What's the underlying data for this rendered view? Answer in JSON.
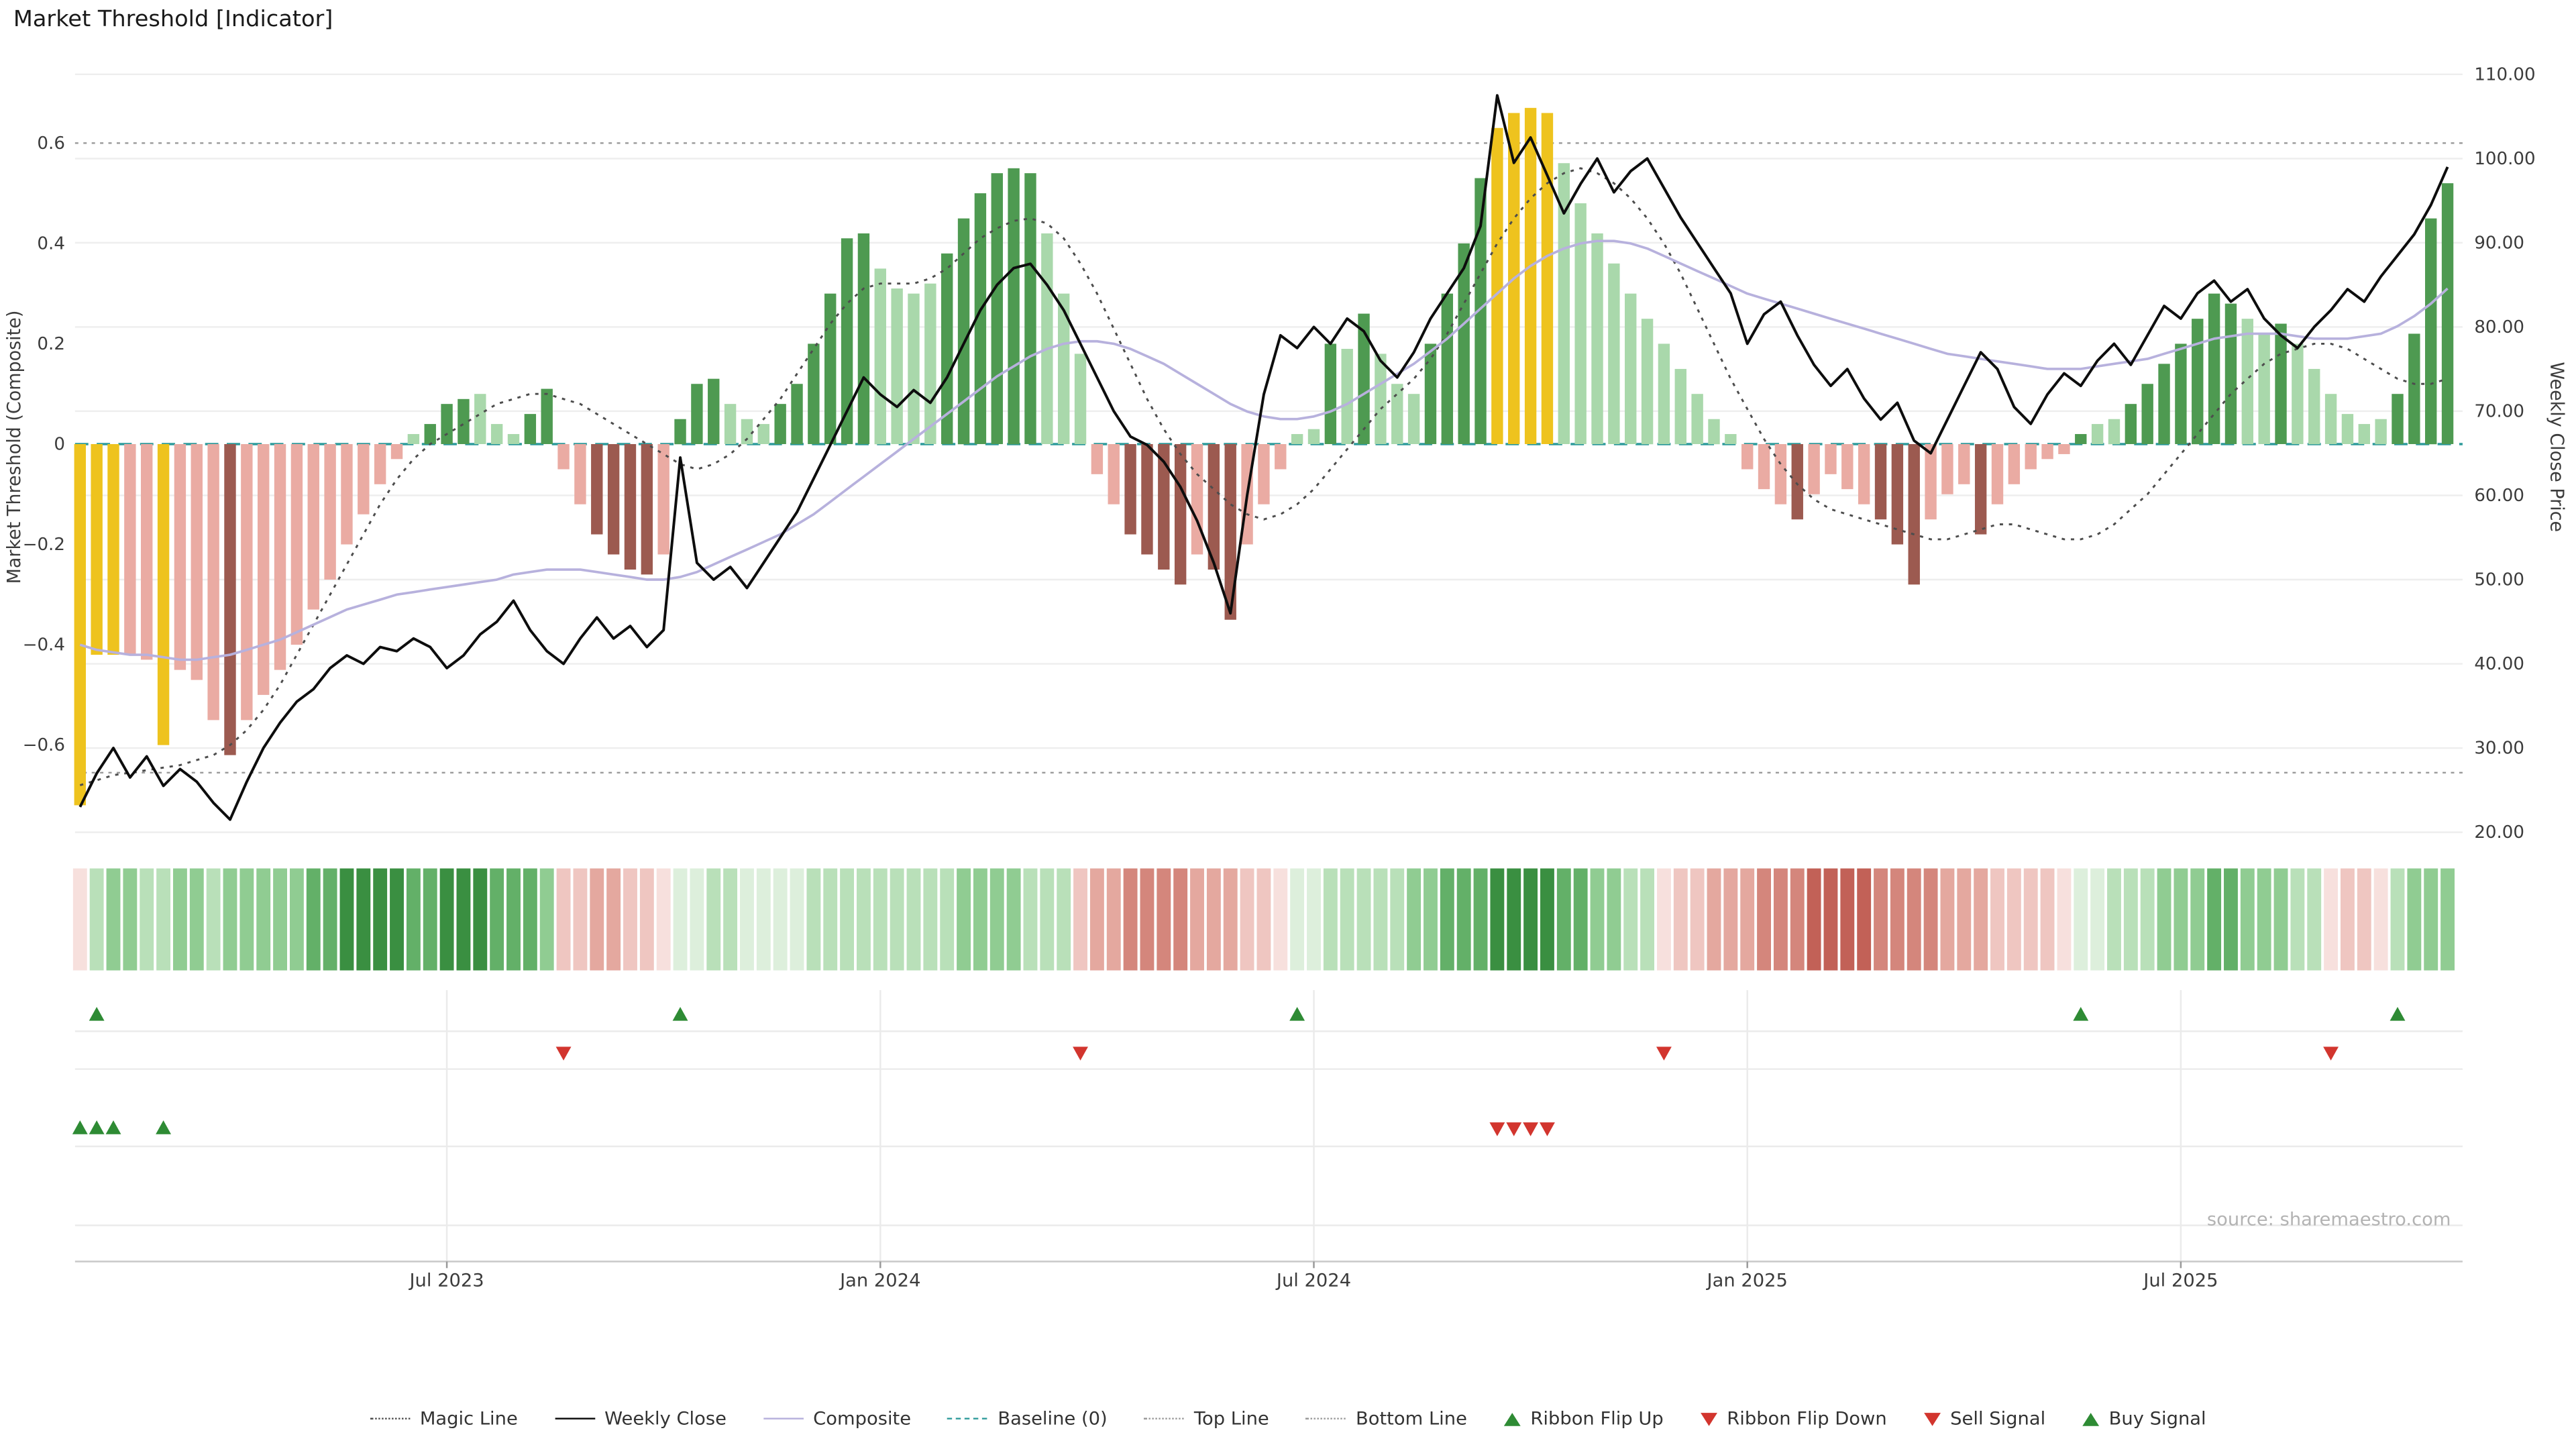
{
  "title": "Market Threshold [Indicator]",
  "source": "source: sharemaestro.com",
  "legend": [
    {
      "label": "Magic Line"
    },
    {
      "label": "Weekly Close"
    },
    {
      "label": "Composite"
    },
    {
      "label": "Baseline (0)"
    },
    {
      "label": "Top Line"
    },
    {
      "label": "Bottom Line"
    },
    {
      "label": "Ribbon Flip Up"
    },
    {
      "label": "Ribbon Flip Down"
    },
    {
      "label": "Sell Signal"
    },
    {
      "label": "Buy Signal"
    }
  ],
  "colors": {
    "bar": {
      "gold": "#eec31e",
      "green_dark": "#4e9a51",
      "green_light": "#a9d8ab",
      "red_dark": "#9c5a50",
      "red_light": "#eaaba3"
    },
    "ribbon_green": [
      "#ddefdc",
      "#b9e0b9",
      "#90cc92",
      "#63b068",
      "#3a8f41"
    ],
    "ribbon_red": [
      "#f7e0dd",
      "#efc6c1",
      "#e4a89f",
      "#d4867c",
      "#c26157"
    ],
    "lines": {
      "magic": "#4d4d4d",
      "weekly_close": "#0d0d0d",
      "composite": "#b7b1dd",
      "baseline": "#2e9b9b",
      "top_bottom": "#9a9a9a"
    },
    "signal_up": "#2e8b34",
    "signal_down": "#d2352e"
  },
  "chart_data": {
    "type": "bar",
    "subtype": "combo bar histogram + lines, weekly",
    "title": "Market Threshold [Indicator]",
    "n_weeks": 143,
    "grid": "horizontal light gridlines at price ticks; vertical gridlines in signal panel",
    "legend_position": "bottom center",
    "x_ticks": {
      "labels": [
        "Jul 2023",
        "Jan 2024",
        "Jul 2024",
        "Jan 2025",
        "Jul 2025"
      ],
      "week_indices": [
        22,
        48,
        74,
        100,
        126
      ]
    },
    "left_axis": {
      "label": "Market Threshold (Composite)",
      "tick_labels": [
        "0.6",
        "0.4",
        "0.2",
        "0",
        "−0.2",
        "−0.4",
        "−0.6"
      ],
      "tick_values": [
        0.6,
        0.4,
        0.2,
        0,
        -0.2,
        -0.4,
        -0.6
      ],
      "range": [
        -0.79,
        0.79
      ]
    },
    "right_axis": {
      "label": "Weekly Close Price",
      "tick_labels": [
        "110.00",
        "100.00",
        "90.00",
        "80.00",
        "70.00",
        "60.00",
        "50.00",
        "40.00",
        "30.00",
        "20.00"
      ],
      "tick_values": [
        110,
        100,
        90,
        80,
        70,
        60,
        50,
        40,
        30,
        20
      ],
      "range": [
        18,
        113.5
      ]
    },
    "top_line": 0.6,
    "bottom_line": -0.655,
    "baseline": 0,
    "threshold_bars": {
      "values": [
        -0.72,
        -0.42,
        -0.42,
        -0.42,
        -0.43,
        -0.6,
        -0.45,
        -0.47,
        -0.55,
        -0.62,
        -0.55,
        -0.5,
        -0.45,
        -0.4,
        -0.33,
        -0.27,
        -0.2,
        -0.14,
        -0.08,
        -0.03,
        0.02,
        0.04,
        0.08,
        0.09,
        0.1,
        0.04,
        0.02,
        0.06,
        0.11,
        -0.05,
        -0.12,
        -0.18,
        -0.22,
        -0.25,
        -0.26,
        -0.22,
        0.05,
        0.12,
        0.13,
        0.08,
        0.05,
        0.04,
        0.08,
        0.12,
        0.2,
        0.3,
        0.41,
        0.42,
        0.35,
        0.31,
        0.3,
        0.32,
        0.38,
        0.45,
        0.5,
        0.54,
        0.55,
        0.54,
        0.42,
        0.3,
        0.18,
        -0.06,
        -0.12,
        -0.18,
        -0.22,
        -0.25,
        -0.28,
        -0.22,
        -0.25,
        -0.35,
        -0.2,
        -0.12,
        -0.05,
        0.02,
        0.03,
        0.2,
        0.19,
        0.26,
        0.18,
        0.12,
        0.1,
        0.2,
        0.3,
        0.4,
        0.53,
        0.63,
        0.66,
        0.67,
        0.66,
        0.56,
        0.48,
        0.42,
        0.36,
        0.3,
        0.25,
        0.2,
        0.15,
        0.1,
        0.05,
        0.02,
        -0.05,
        -0.09,
        -0.12,
        -0.15,
        -0.1,
        -0.06,
        -0.09,
        -0.12,
        -0.15,
        -0.2,
        -0.28,
        -0.15,
        -0.1,
        -0.08,
        -0.18,
        -0.12,
        -0.08,
        -0.05,
        -0.03,
        -0.02,
        0.02,
        0.04,
        0.05,
        0.08,
        0.12,
        0.16,
        0.2,
        0.25,
        0.3,
        0.28,
        0.25,
        0.22,
        0.24,
        0.2,
        0.15,
        0.1,
        0.06,
        0.04,
        0.05,
        0.1,
        0.22,
        0.45,
        0.52
      ],
      "colors": [
        "gold",
        "gold",
        "gold",
        "red_light",
        "red_light",
        "gold",
        "red_light",
        "red_light",
        "red_light",
        "red_dark",
        "red_light",
        "red_light",
        "red_light",
        "red_light",
        "red_light",
        "red_light",
        "red_light",
        "red_light",
        "red_light",
        "red_light",
        "green_light",
        "green_dark",
        "green_dark",
        "green_dark",
        "green_light",
        "green_light",
        "green_light",
        "green_dark",
        "green_dark",
        "red_light",
        "red_light",
        "red_dark",
        "red_dark",
        "red_dark",
        "red_dark",
        "red_light",
        "green_dark",
        "green_dark",
        "green_dark",
        "green_light",
        "green_light",
        "green_light",
        "green_dark",
        "green_dark",
        "green_dark",
        "green_dark",
        "green_dark",
        "green_dark",
        "green_light",
        "green_light",
        "green_light",
        "green_light",
        "green_dark",
        "green_dark",
        "green_dark",
        "green_dark",
        "green_dark",
        "green_dark",
        "green_light",
        "green_light",
        "green_light",
        "red_light",
        "red_light",
        "red_dark",
        "red_dark",
        "red_dark",
        "red_dark",
        "red_light",
        "red_dark",
        "red_dark",
        "red_light",
        "red_light",
        "red_light",
        "green_light",
        "green_light",
        "green_dark",
        "green_light",
        "green_dark",
        "green_light",
        "green_light",
        "green_light",
        "green_dark",
        "green_dark",
        "green_dark",
        "green_dark",
        "gold",
        "gold",
        "gold",
        "gold",
        "green_light",
        "green_light",
        "green_light",
        "green_light",
        "green_light",
        "green_light",
        "green_light",
        "green_light",
        "green_light",
        "green_light",
        "green_light",
        "red_light",
        "red_light",
        "red_light",
        "red_dark",
        "red_light",
        "red_light",
        "red_light",
        "red_light",
        "red_dark",
        "red_dark",
        "red_dark",
        "red_light",
        "red_light",
        "red_light",
        "red_dark",
        "red_light",
        "red_light",
        "red_light",
        "red_light",
        "red_light",
        "green_dark",
        "green_light",
        "green_light",
        "green_dark",
        "green_dark",
        "green_dark",
        "green_dark",
        "green_dark",
        "green_dark",
        "green_dark",
        "green_light",
        "green_light",
        "green_dark",
        "green_light",
        "green_light",
        "green_light",
        "green_light",
        "green_light",
        "green_light",
        "green_dark",
        "green_dark",
        "green_dark",
        "green_dark"
      ]
    },
    "weekly_close": {
      "name": "Weekly Close",
      "axis": "right",
      "values": [
        23,
        27,
        30,
        26.5,
        29,
        25.5,
        27.5,
        26,
        23.5,
        21.5,
        26,
        30,
        33,
        35.5,
        37,
        39.5,
        41,
        40,
        42,
        41.5,
        43,
        42,
        39.5,
        41,
        43.5,
        45,
        47.5,
        44,
        41.5,
        40,
        43,
        45.5,
        43,
        44.5,
        42,
        44,
        64.5,
        52,
        50,
        51.5,
        49,
        52,
        55,
        58,
        62,
        66,
        70,
        74,
        72,
        70.5,
        72.5,
        71,
        74,
        78,
        82,
        85,
        87,
        87.5,
        85,
        82,
        78,
        74,
        70,
        67,
        66,
        64,
        61,
        57,
        52,
        46,
        60,
        72,
        79,
        77.5,
        80,
        78,
        81,
        79.5,
        76,
        74,
        77,
        81,
        84,
        87,
        92,
        107.5,
        99.5,
        102.5,
        98,
        93.5,
        97,
        100,
        96,
        98.5,
        100,
        96.5,
        93,
        90,
        87,
        84,
        78,
        81.5,
        83,
        79,
        75.5,
        73,
        75,
        71.5,
        69,
        71,
        66.5,
        65,
        69,
        73,
        77,
        75,
        70.5,
        68.5,
        72,
        74.5,
        73,
        76,
        78,
        75.5,
        79,
        82.5,
        81,
        84,
        85.5,
        83,
        84.5,
        81,
        79,
        77.5,
        80,
        82,
        84.5,
        83,
        86,
        88.5,
        91,
        94.5,
        99
      ]
    },
    "composite": {
      "name": "Composite",
      "axis": "left",
      "values": [
        -0.4,
        -0.41,
        -0.415,
        -0.42,
        -0.42,
        -0.425,
        -0.43,
        -0.43,
        -0.425,
        -0.42,
        -0.41,
        -0.4,
        -0.39,
        -0.375,
        -0.36,
        -0.345,
        -0.33,
        -0.32,
        -0.31,
        -0.3,
        -0.295,
        -0.29,
        -0.285,
        -0.28,
        -0.275,
        -0.27,
        -0.26,
        -0.255,
        -0.25,
        -0.25,
        -0.25,
        -0.255,
        -0.26,
        -0.265,
        -0.27,
        -0.27,
        -0.265,
        -0.255,
        -0.24,
        -0.225,
        -0.21,
        -0.195,
        -0.18,
        -0.16,
        -0.14,
        -0.115,
        -0.09,
        -0.065,
        -0.04,
        -0.015,
        0.01,
        0.035,
        0.06,
        0.085,
        0.11,
        0.135,
        0.155,
        0.175,
        0.19,
        0.2,
        0.205,
        0.205,
        0.2,
        0.19,
        0.175,
        0.16,
        0.14,
        0.12,
        0.1,
        0.08,
        0.065,
        0.055,
        0.05,
        0.05,
        0.055,
        0.065,
        0.08,
        0.1,
        0.12,
        0.14,
        0.16,
        0.185,
        0.21,
        0.24,
        0.27,
        0.3,
        0.33,
        0.355,
        0.375,
        0.39,
        0.4,
        0.405,
        0.405,
        0.4,
        0.39,
        0.375,
        0.36,
        0.345,
        0.33,
        0.315,
        0.3,
        0.29,
        0.28,
        0.27,
        0.26,
        0.25,
        0.24,
        0.23,
        0.22,
        0.21,
        0.2,
        0.19,
        0.18,
        0.175,
        0.17,
        0.165,
        0.16,
        0.155,
        0.15,
        0.15,
        0.15,
        0.155,
        0.16,
        0.165,
        0.17,
        0.18,
        0.19,
        0.2,
        0.21,
        0.215,
        0.22,
        0.22,
        0.22,
        0.215,
        0.21,
        0.21,
        0.21,
        0.215,
        0.22,
        0.235,
        0.255,
        0.28,
        0.31
      ]
    },
    "magic_line": {
      "name": "Magic Line",
      "axis": "left",
      "values": [
        -0.68,
        -0.67,
        -0.66,
        -0.655,
        -0.65,
        -0.645,
        -0.64,
        -0.63,
        -0.62,
        -0.6,
        -0.57,
        -0.53,
        -0.48,
        -0.42,
        -0.36,
        -0.3,
        -0.24,
        -0.18,
        -0.12,
        -0.07,
        -0.03,
        0,
        0.02,
        0.04,
        0.06,
        0.08,
        0.09,
        0.1,
        0.1,
        0.09,
        0.08,
        0.06,
        0.04,
        0.02,
        0,
        -0.02,
        -0.04,
        -0.05,
        -0.04,
        -0.02,
        0.01,
        0.05,
        0.09,
        0.14,
        0.19,
        0.24,
        0.28,
        0.31,
        0.32,
        0.32,
        0.32,
        0.33,
        0.35,
        0.38,
        0.41,
        0.43,
        0.445,
        0.45,
        0.44,
        0.41,
        0.36,
        0.3,
        0.23,
        0.16,
        0.09,
        0.03,
        -0.02,
        -0.06,
        -0.09,
        -0.12,
        -0.14,
        -0.15,
        -0.14,
        -0.12,
        -0.09,
        -0.05,
        -0.01,
        0.03,
        0.07,
        0.1,
        0.13,
        0.17,
        0.22,
        0.28,
        0.34,
        0.4,
        0.45,
        0.49,
        0.52,
        0.54,
        0.55,
        0.54,
        0.52,
        0.49,
        0.45,
        0.4,
        0.34,
        0.27,
        0.2,
        0.13,
        0.07,
        0.01,
        -0.04,
        -0.08,
        -0.11,
        -0.13,
        -0.14,
        -0.15,
        -0.16,
        -0.17,
        -0.18,
        -0.19,
        -0.19,
        -0.18,
        -0.17,
        -0.16,
        -0.16,
        -0.17,
        -0.18,
        -0.19,
        -0.19,
        -0.18,
        -0.16,
        -0.13,
        -0.1,
        -0.06,
        -0.02,
        0.02,
        0.06,
        0.1,
        0.13,
        0.16,
        0.18,
        0.19,
        0.2,
        0.2,
        0.19,
        0.17,
        0.15,
        0.13,
        0.12,
        0.12,
        0.13
      ]
    },
    "ribbon": {
      "description": "weekly sentiment ribbon, -5 (strong red) .. 5 (strong green)",
      "values": [
        -1,
        2,
        3,
        3,
        2,
        2,
        3,
        3,
        2,
        3,
        3,
        3,
        3,
        3,
        4,
        4,
        5,
        5,
        5,
        5,
        4,
        4,
        5,
        5,
        5,
        4,
        4,
        4,
        3,
        -2,
        -2,
        -3,
        -3,
        -2,
        -2,
        -1,
        1,
        1,
        2,
        2,
        1,
        1,
        1,
        1,
        2,
        2,
        2,
        2,
        2,
        2,
        2,
        2,
        2,
        3,
        3,
        3,
        3,
        2,
        2,
        2,
        -2,
        -3,
        -3,
        -4,
        -4,
        -4,
        -4,
        -3,
        -3,
        -3,
        -2,
        -2,
        -1,
        1,
        1,
        2,
        2,
        2,
        2,
        2,
        3,
        3,
        4,
        4,
        4,
        5,
        5,
        5,
        5,
        4,
        4,
        3,
        3,
        2,
        2,
        -1,
        -2,
        -2,
        -3,
        -3,
        -3,
        -4,
        -4,
        -4,
        -5,
        -5,
        -5,
        -5,
        -4,
        -4,
        -4,
        -4,
        -3,
        -3,
        -3,
        -2,
        -2,
        -2,
        -2,
        -1,
        1,
        1,
        2,
        2,
        2,
        3,
        3,
        3,
        4,
        4,
        3,
        3,
        3,
        2,
        2,
        -1,
        -2,
        -2,
        -1,
        2,
        3,
        3,
        3
      ]
    },
    "signals": {
      "ribbon_flip_up_weeks": [
        1,
        36,
        73,
        120,
        139
      ],
      "ribbon_flip_down_weeks": [
        29,
        60,
        95,
        135
      ],
      "buy_weeks": [
        0,
        1,
        2,
        5
      ],
      "sell_weeks": [
        85,
        86,
        87,
        88
      ]
    }
  }
}
